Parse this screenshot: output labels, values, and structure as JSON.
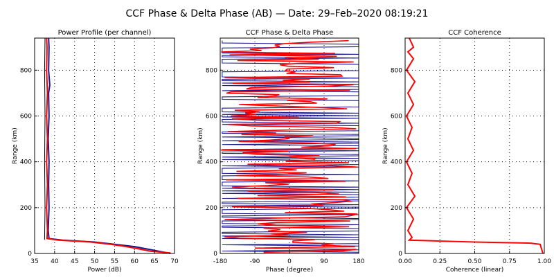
{
  "figure": {
    "title": "CCF Phase & Delta Phase (AB) — Date: 29–Feb–2020 08:19:21"
  },
  "colors": {
    "blue": "#1a1a8c",
    "red": "#ff0000",
    "frame": "#000000",
    "grid": "#000000"
  },
  "chart_data": [
    {
      "type": "line",
      "title": "Power Profile (per channel)",
      "xlabel": "Power (dB)",
      "ylabel": "Range (km)",
      "xlim": [
        35,
        70
      ],
      "ylim": [
        0,
        940
      ],
      "xticks": [
        35,
        40,
        45,
        50,
        55,
        60,
        65,
        70
      ],
      "yticks": [
        0,
        200,
        400,
        600,
        800
      ],
      "grid": true,
      "series": [
        {
          "color": "blue",
          "points": [
            [
              69,
              0
            ],
            [
              66,
              10
            ],
            [
              63,
              20
            ],
            [
              60,
              30
            ],
            [
              55,
              40
            ],
            [
              50,
              50
            ],
            [
              42,
              58
            ],
            [
              38.6,
              65
            ],
            [
              38.4,
              100
            ],
            [
              38.6,
              200
            ],
            [
              38.5,
              300
            ],
            [
              38.6,
              400
            ],
            [
              38.4,
              500
            ],
            [
              38.6,
              600
            ],
            [
              38.5,
              700
            ],
            [
              38.8,
              735
            ],
            [
              38.5,
              800
            ],
            [
              38.6,
              900
            ],
            [
              38.5,
              940
            ]
          ]
        },
        {
          "color": "red",
          "points": [
            [
              69,
              2
            ],
            [
              64,
              10
            ],
            [
              61,
              20
            ],
            [
              58,
              30
            ],
            [
              54,
              40
            ],
            [
              49,
              50
            ],
            [
              41,
              58
            ],
            [
              38.1,
              65
            ],
            [
              38.2,
              100
            ],
            [
              38.0,
              200
            ],
            [
              38.2,
              300
            ],
            [
              38.0,
              400
            ],
            [
              38.2,
              500
            ],
            [
              38.0,
              600
            ],
            [
              38.2,
              700
            ],
            [
              38.0,
              800
            ],
            [
              38.1,
              900
            ],
            [
              38.0,
              940
            ]
          ]
        },
        {
          "color": "black",
          "points": [
            [
              37.5,
              60
            ],
            [
              37.6,
              200
            ],
            [
              37.5,
              400
            ],
            [
              37.6,
              600
            ],
            [
              37.5,
              800
            ],
            [
              37.6,
              940
            ]
          ]
        }
      ]
    },
    {
      "type": "line",
      "title": "CCF Phase & Delta Phase",
      "xlabel": "Phase (degree)",
      "ylabel": "Range (km)",
      "xlim": [
        -180,
        180
      ],
      "ylim": [
        0,
        940
      ],
      "xticks": [
        -180,
        -90,
        0,
        90,
        180
      ],
      "yticks": [
        0,
        200,
        400,
        600,
        800
      ],
      "grid": true,
      "series": [
        {
          "name": "CCF Phase",
          "color": "blue",
          "count": 170
        },
        {
          "name": "Delta Phase",
          "color": "red",
          "count": 150
        }
      ]
    },
    {
      "type": "line",
      "title": "CCF Coherence",
      "xlabel": "Coherence (linear)",
      "ylabel": "Range (km)",
      "xlim": [
        0,
        1
      ],
      "ylim": [
        0,
        940
      ],
      "xticks": [
        "0.00",
        "0.25",
        "0.50",
        "0.75",
        "1.00"
      ],
      "yticks": [
        0,
        200,
        400,
        600,
        800
      ],
      "grid": true,
      "series": [
        {
          "color": "red",
          "points": [
            [
              0.99,
              0
            ],
            [
              0.98,
              20
            ],
            [
              0.97,
              40
            ],
            [
              0.9,
              45
            ],
            [
              0.5,
              50
            ],
            [
              0.2,
              55
            ],
            [
              0.03,
              58
            ],
            [
              0.05,
              70
            ],
            [
              0.02,
              100
            ],
            [
              0.06,
              150
            ],
            [
              0.01,
              200
            ],
            [
              0.07,
              250
            ],
            [
              0.02,
              300
            ],
            [
              0.05,
              350
            ],
            [
              0.01,
              400
            ],
            [
              0.06,
              450
            ],
            [
              0.02,
              500
            ],
            [
              0.05,
              550
            ],
            [
              0.01,
              600
            ],
            [
              0.06,
              650
            ],
            [
              0.02,
              700
            ],
            [
              0.07,
              750
            ],
            [
              0.01,
              800
            ],
            [
              0.06,
              850
            ],
            [
              0.02,
              880
            ],
            [
              0.06,
              900
            ],
            [
              0.03,
              940
            ]
          ]
        }
      ]
    }
  ]
}
